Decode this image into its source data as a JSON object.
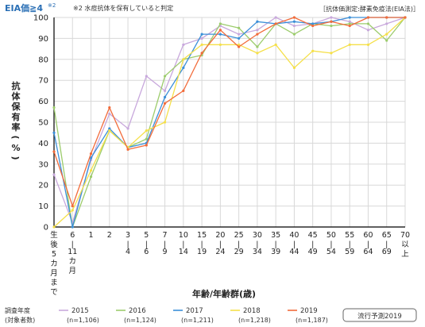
{
  "header": {
    "title": "EIA価≧4",
    "title_sup": "※2",
    "note": "※2 水痘抗体を保有していると判定",
    "method": "［抗体価測定:酵素免疫法(EIA法)］"
  },
  "legend": {
    "heading_line1": "調査年度",
    "heading_line2": "(対象者数)",
    "badge": "流行予測2019"
  },
  "colors": {
    "2015": "#c8a8dc",
    "2016": "#9ccc6c",
    "2017": "#3b8fd8",
    "2018": "#f5e04a",
    "2019": "#f26b3a",
    "grid": "#d8d8d8",
    "axis": "#000000"
  },
  "chart_data": {
    "type": "line",
    "title": "",
    "xlabel": "年齢/年齢群(歳)",
    "ylabel": "抗体保有率(%)",
    "ylim": [
      0,
      100
    ],
    "yticks": [
      0,
      10,
      20,
      30,
      40,
      50,
      60,
      70,
      80,
      90,
      100
    ],
    "grid": true,
    "legend_position": "bottom",
    "categories": [
      "生後5カ月まで",
      "6-11カ月",
      "1",
      "2",
      "3-4",
      "5-6",
      "7-9",
      "10-14",
      "15-19",
      "20-24",
      "25-29",
      "30-34",
      "35-39",
      "40-44",
      "45-49",
      "50-54",
      "55-59",
      "60-64",
      "65-69",
      "70以上"
    ],
    "x_tick_labels": [
      [
        "生",
        "後",
        "5",
        "カ",
        "月",
        "ま",
        "で"
      ],
      [
        "6",
        "|",
        "11",
        "カ",
        "月"
      ],
      [
        "1"
      ],
      [
        "2"
      ],
      [
        "3",
        "|",
        "4"
      ],
      [
        "5",
        "|",
        "6"
      ],
      [
        "7",
        "|",
        "9"
      ],
      [
        "10",
        "|",
        "14"
      ],
      [
        "15",
        "|",
        "19"
      ],
      [
        "20",
        "|",
        "24"
      ],
      [
        "25",
        "|",
        "29"
      ],
      [
        "30",
        "|",
        "34"
      ],
      [
        "35",
        "|",
        "39"
      ],
      [
        "40",
        "|",
        "44"
      ],
      [
        "45",
        "|",
        "49"
      ],
      [
        "50",
        "|",
        "54"
      ],
      [
        "55",
        "|",
        "59"
      ],
      [
        "60",
        "|",
        "64"
      ],
      [
        "65",
        "|",
        "69"
      ],
      [
        "70",
        "以",
        "上"
      ]
    ],
    "series": [
      {
        "name": "2015",
        "n_label": "(n=1,106)",
        "values": [
          25,
          2,
          32,
          54,
          47,
          72,
          65,
          87,
          90,
          96,
          92,
          94,
          100,
          96,
          97,
          100,
          98,
          94,
          97,
          100
        ]
      },
      {
        "name": "2016",
        "n_label": "(n=1,124)",
        "values": [
          57,
          0,
          24,
          46,
          38,
          42,
          72,
          80,
          82,
          97,
          95,
          86,
          97,
          92,
          97,
          96,
          97,
          97,
          89,
          100
        ]
      },
      {
        "name": "2017",
        "n_label": "(n=1,211)",
        "values": [
          45,
          0,
          33,
          47,
          38,
          40,
          62,
          76,
          92,
          92,
          90,
          98,
          97,
          98,
          97,
          98,
          100,
          100,
          100,
          100
        ]
      },
      {
        "name": "2018",
        "n_label": "(n=1,218)",
        "values": [
          0,
          8,
          27,
          46,
          38,
          46,
          50,
          80,
          87,
          87,
          87,
          83,
          87,
          76,
          84,
          83,
          87,
          87,
          92,
          100
        ]
      },
      {
        "name": "2019",
        "n_label": "(n=1,187)",
        "values": [
          36,
          10,
          35,
          57,
          37,
          39,
          59,
          65,
          83,
          94,
          86,
          92,
          97,
          100,
          96,
          98,
          96,
          100,
          100,
          100
        ]
      }
    ]
  }
}
